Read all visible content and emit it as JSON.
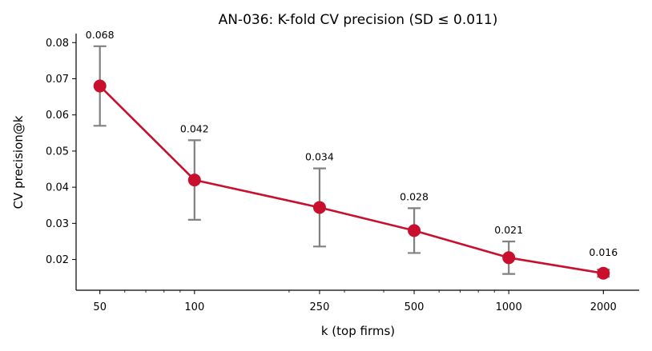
{
  "chart_data": {
    "type": "line",
    "title": "AN-036: K-fold CV precision (SD ≤ 0.011)",
    "xlabel": "k (top firms)",
    "ylabel": "CV precision@k",
    "x_scale": "log",
    "x": [
      50,
      100,
      250,
      500,
      1000,
      2000
    ],
    "x_tick_labels": [
      "50",
      "100",
      "250",
      "500",
      "1000",
      "2000"
    ],
    "xlim": [
      42,
      2600
    ],
    "ylim": [
      0.0115,
      0.0825
    ],
    "y_ticks": [
      0.02,
      0.03,
      0.04,
      0.05,
      0.06,
      0.07,
      0.08
    ],
    "y_tick_labels": [
      "0.02",
      "0.03",
      "0.04",
      "0.05",
      "0.06",
      "0.07",
      "0.08"
    ],
    "series": [
      {
        "values": [
          0.068,
          0.042,
          0.0344,
          0.028,
          0.0205,
          0.0162
        ],
        "error": [
          0.011,
          0.011,
          0.0108,
          0.0062,
          0.0045,
          0.001
        ],
        "data_labels": [
          "0.068",
          "0.042",
          "0.034",
          "0.028",
          "0.021",
          "0.016"
        ],
        "color": "#c8102e",
        "errorbar_color": "#808080"
      }
    ],
    "grid": false,
    "legend": "none"
  }
}
